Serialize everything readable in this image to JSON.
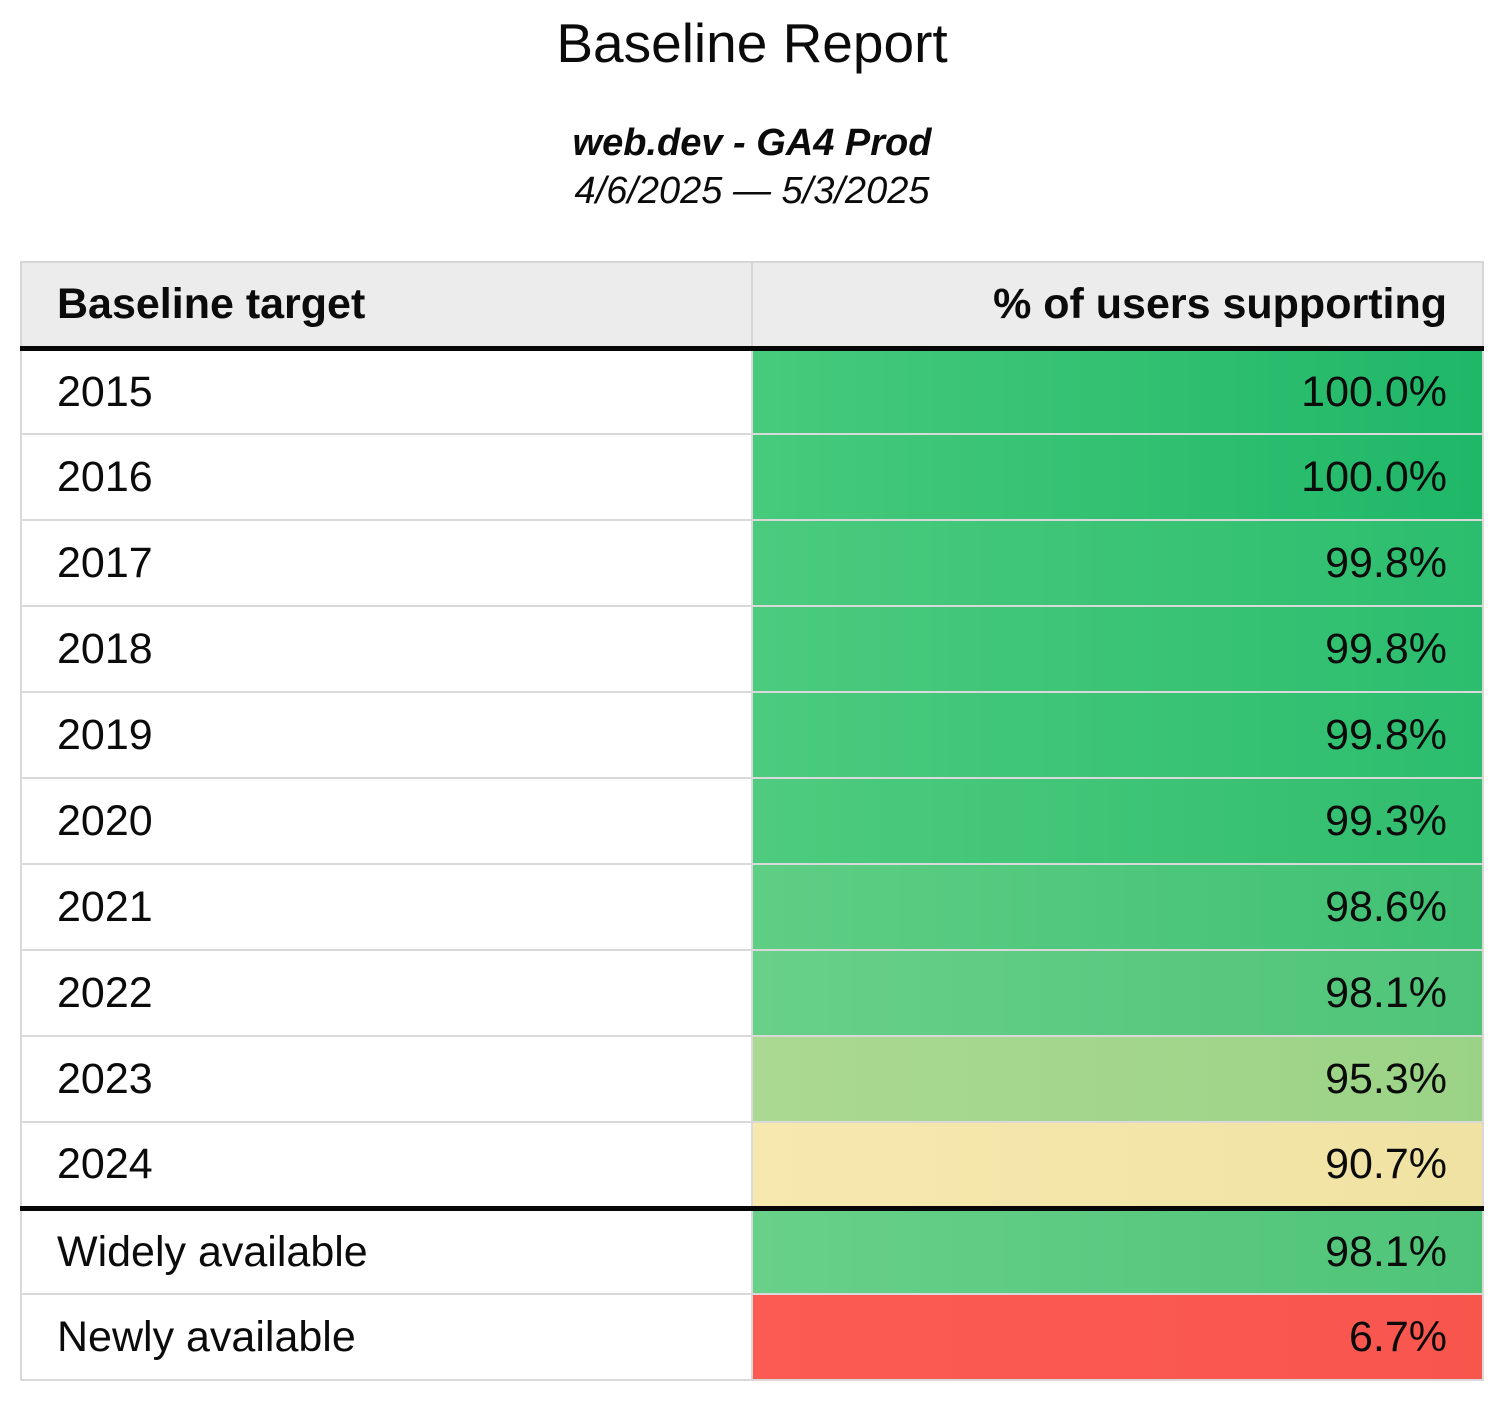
{
  "page": {
    "title": "Baseline Report",
    "subtitle": "web.dev - GA4 Prod",
    "date_range": "4/6/2025 — 5/3/2025"
  },
  "colors": {
    "header_bg": "#ececec",
    "grid_border": "#d9d9d9",
    "section_divider": "#070707",
    "text": "#0b0b0b",
    "green_full": "#2bbf6d",
    "yellow_mid": "#f4e6a8",
    "red_low": "#fa5a52"
  },
  "table": {
    "columns": [
      {
        "label": "Baseline target"
      },
      {
        "label": "% of users supporting"
      }
    ],
    "rows": [
      {
        "label": "2015",
        "value": "100.0%",
        "group": "year",
        "color_left": "#47ca7c",
        "color_right": "#1fb768"
      },
      {
        "label": "2016",
        "value": "100.0%",
        "group": "year",
        "color_left": "#47ca7c",
        "color_right": "#1fb768"
      },
      {
        "label": "2017",
        "value": "99.8%",
        "group": "year",
        "color_left": "#4bcb7e",
        "color_right": "#2cbd6e"
      },
      {
        "label": "2018",
        "value": "99.8%",
        "group": "year",
        "color_left": "#4bcb7e",
        "color_right": "#2cbd6e"
      },
      {
        "label": "2019",
        "value": "99.8%",
        "group": "year",
        "color_left": "#4bcb7e",
        "color_right": "#2cbd6e"
      },
      {
        "label": "2020",
        "value": "99.3%",
        "group": "year",
        "color_left": "#4ecb7e",
        "color_right": "#30bd6e"
      },
      {
        "label": "2021",
        "value": "98.6%",
        "group": "year",
        "color_left": "#5fce85",
        "color_right": "#3fc073"
      },
      {
        "label": "2022",
        "value": "98.1%",
        "group": "year",
        "color_left": "#68d089",
        "color_right": "#4fc479"
      },
      {
        "label": "2023",
        "value": "95.3%",
        "group": "year",
        "color_left": "#abd992",
        "color_right": "#9bd386"
      },
      {
        "label": "2024",
        "value": "90.7%",
        "group": "year",
        "color_left": "#f7e9ae",
        "color_right": "#f0e2a2"
      },
      {
        "label": "Widely available",
        "value": "98.1%",
        "group": "status",
        "color_left": "#68d089",
        "color_right": "#4fc479"
      },
      {
        "label": "Newly available",
        "value": "6.7%",
        "group": "status",
        "color_left": "#fb5b53",
        "color_right": "#f8554d"
      }
    ]
  },
  "chart_data": {
    "type": "table",
    "title": "Baseline Report",
    "subtitle": "web.dev - GA4 Prod",
    "date_range": "4/6/2025 — 5/3/2025",
    "columns": [
      "Baseline target",
      "% of users supporting"
    ],
    "categories": [
      "2015",
      "2016",
      "2017",
      "2018",
      "2019",
      "2020",
      "2021",
      "2022",
      "2023",
      "2024",
      "Widely available",
      "Newly available"
    ],
    "values": [
      100.0,
      100.0,
      99.8,
      99.8,
      99.8,
      99.3,
      98.6,
      98.1,
      95.3,
      90.7,
      98.1,
      6.7
    ],
    "value_format": "percent",
    "color_scale": "heatmap: high=green, ~90=yellow, low=red",
    "layout": "two-column table, value column right-aligned, heavy divider between year rows and availability-status rows"
  }
}
